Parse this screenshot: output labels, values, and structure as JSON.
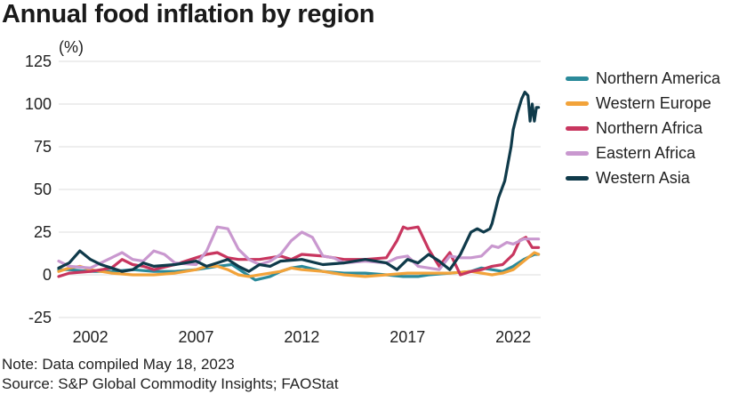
{
  "title": "Annual food inflation by region",
  "note": "Note: Data compiled May 18, 2023",
  "source": "Source: S&P Global Commodity Insights; FAOStat",
  "chart_data": {
    "type": "line",
    "title": "Annual food inflation by region",
    "ylabel": "(%)",
    "xlabel": "",
    "ylim": [
      -25,
      125
    ],
    "xlim": [
      2000.5,
      2023.3
    ],
    "yticks": [
      -25,
      0,
      25,
      50,
      75,
      100,
      125
    ],
    "xticks": [
      2002,
      2007,
      2012,
      2017,
      2022
    ],
    "grid": true,
    "legend_position": "right",
    "series": [
      {
        "name": "Northern America",
        "color": "#2b8a9a",
        "x": [
          2000.5,
          2001,
          2002,
          2003,
          2004,
          2005,
          2006,
          2007,
          2008,
          2008.7,
          2009.3,
          2009.8,
          2010.5,
          2011,
          2011.5,
          2012,
          2013,
          2014,
          2015,
          2016,
          2016.8,
          2017.5,
          2018,
          2019,
          2020,
          2020.5,
          2021,
          2021.5,
          2022,
          2022.5,
          2023,
          2023.2
        ],
        "y": [
          3,
          3,
          2,
          2,
          3,
          2,
          2,
          3,
          5,
          6,
          1,
          -3,
          -1,
          2,
          4,
          5,
          2,
          1,
          1,
          0,
          -1,
          -1,
          0,
          1,
          2,
          4,
          3,
          2,
          5,
          9,
          12,
          12
        ]
      },
      {
        "name": "Western Europe",
        "color": "#f2a33a",
        "x": [
          2000.5,
          2001,
          2001.5,
          2002,
          2003,
          2004,
          2005,
          2006,
          2007,
          2007.5,
          2008,
          2008.5,
          2009,
          2009.5,
          2010,
          2011,
          2011.5,
          2012,
          2013,
          2014,
          2015,
          2016,
          2017,
          2018,
          2019,
          2020,
          2021,
          2021.5,
          2022,
          2022.5,
          2023,
          2023.2
        ],
        "y": [
          2,
          4,
          5,
          3,
          1,
          0,
          0,
          1,
          3,
          5,
          5,
          3,
          0,
          -1,
          0,
          2,
          4,
          3,
          2,
          0,
          -1,
          0,
          1,
          1,
          1,
          2,
          0,
          1,
          3,
          8,
          13,
          12
        ]
      },
      {
        "name": "Northern Africa",
        "color": "#c8365f",
        "x": [
          2000.5,
          2001,
          2002,
          2003,
          2003.5,
          2004,
          2004.5,
          2005,
          2006,
          2007,
          2007.5,
          2008,
          2008.5,
          2009,
          2010,
          2011,
          2011.5,
          2012,
          2013,
          2014,
          2015,
          2016,
          2016.5,
          2016.8,
          2017,
          2017.5,
          2018,
          2018.5,
          2019,
          2019.5,
          2020,
          2020.5,
          2021,
          2021.5,
          2022,
          2022.3,
          2022.6,
          2022.9,
          2023.2
        ],
        "y": [
          -1,
          1,
          2,
          4,
          9,
          6,
          5,
          3,
          6,
          10,
          12,
          13,
          10,
          9,
          9,
          11,
          9,
          12,
          11,
          9,
          9,
          10,
          20,
          28,
          27,
          28,
          15,
          5,
          13,
          0,
          2,
          3,
          5,
          6,
          12,
          20,
          22,
          16,
          16
        ]
      },
      {
        "name": "Eastern Africa",
        "color": "#c998cf",
        "x": [
          2000.5,
          2001,
          2002,
          2002.5,
          2003,
          2003.5,
          2004,
          2004.5,
          2005,
          2005.5,
          2006,
          2007,
          2007.5,
          2008,
          2008.5,
          2009,
          2009.5,
          2010,
          2010.5,
          2011,
          2011.5,
          2012,
          2012.5,
          2013,
          2013.5,
          2014,
          2015,
          2016,
          2016.5,
          2017,
          2017.5,
          2018,
          2018.5,
          2019,
          2019.5,
          2020,
          2020.5,
          2021,
          2021.3,
          2021.7,
          2022,
          2022.5,
          2023.2
        ],
        "y": [
          8,
          5,
          4,
          7,
          10,
          13,
          9,
          8,
          14,
          12,
          7,
          6,
          14,
          28,
          27,
          15,
          9,
          6,
          8,
          12,
          20,
          25,
          22,
          11,
          10,
          7,
          8,
          7,
          10,
          11,
          5,
          4,
          3,
          11,
          10,
          10,
          11,
          17,
          16,
          19,
          18,
          21,
          21
        ]
      },
      {
        "name": "Western Asia",
        "color": "#0f3a4a",
        "x": [
          2000.5,
          2001,
          2001.5,
          2002,
          2002.5,
          2003,
          2003.5,
          2004,
          2004.5,
          2005,
          2006,
          2007,
          2007.5,
          2008,
          2008.5,
          2009,
          2009.5,
          2010,
          2010.5,
          2011,
          2012,
          2013,
          2014,
          2015,
          2016,
          2016.5,
          2017,
          2017.5,
          2018,
          2018.5,
          2019,
          2019.5,
          2020,
          2020.3,
          2020.6,
          2020.9,
          2021,
          2021.3,
          2021.6,
          2021.9,
          2022,
          2022.2,
          2022.4,
          2022.55,
          2022.7,
          2022.8,
          2022.9,
          2023,
          2023.1,
          2023.2
        ],
        "y": [
          4,
          7,
          14,
          9,
          6,
          4,
          2,
          3,
          7,
          5,
          6,
          8,
          5,
          7,
          9,
          5,
          2,
          6,
          5,
          8,
          9,
          6,
          7,
          9,
          7,
          3,
          9,
          7,
          12,
          8,
          3,
          12,
          25,
          27,
          25,
          27,
          30,
          45,
          55,
          75,
          85,
          95,
          103,
          107,
          105,
          90,
          100,
          90,
          98,
          98
        ]
      }
    ]
  }
}
